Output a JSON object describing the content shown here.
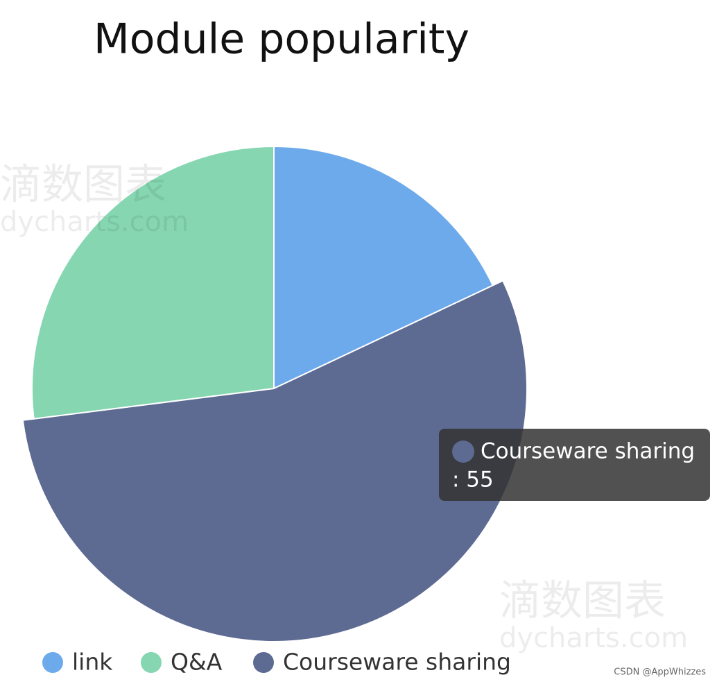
{
  "chart_data": {
    "type": "pie",
    "title": "Module popularity",
    "categories": [
      "link",
      "Q&A",
      "Courseware sharing"
    ],
    "values": [
      18,
      27,
      55
    ],
    "colors": [
      "#6daaeb",
      "#85d6b1",
      "#5d6a92"
    ],
    "legend": "bottom",
    "tooltip": {
      "name": "Courseware sharing",
      "text": ": 55"
    }
  },
  "watermarks": [
    "滴数图表",
    "dycharts.com",
    "CSDN @AppWhizzes"
  ]
}
